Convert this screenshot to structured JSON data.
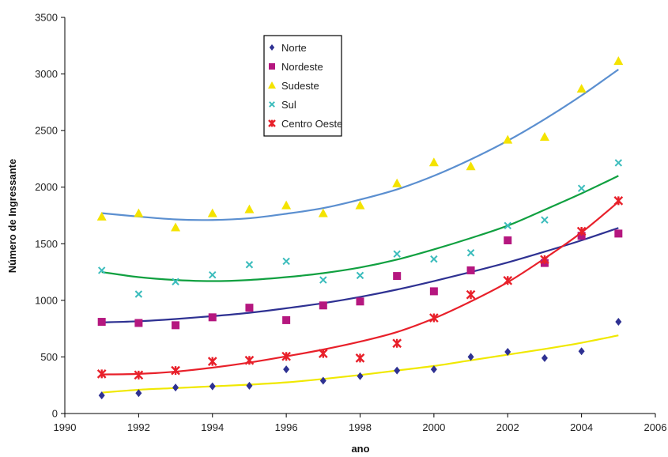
{
  "chart_data": {
    "type": "scatter",
    "title": "",
    "xlabel": "ano",
    "ylabel": "Número de Ingressante",
    "xlim": [
      1990,
      2006
    ],
    "ylim": [
      0,
      3500
    ],
    "xticks": [
      1990,
      1992,
      1994,
      1996,
      1998,
      2000,
      2002,
      2004,
      2006
    ],
    "yticks": [
      0,
      500,
      1000,
      1500,
      2000,
      2500,
      3000,
      3500
    ],
    "grid": false,
    "legend_position": "top-center",
    "x": [
      1991,
      1992,
      1993,
      1994,
      1995,
      1996,
      1997,
      1998,
      1999,
      2000,
      2001,
      2002,
      2003,
      2004,
      2005
    ],
    "series": [
      {
        "name": "Norte",
        "marker": "diamond",
        "color": "#2e3192",
        "trend_color": "#f0e800",
        "values": [
          160,
          180,
          230,
          240,
          245,
          390,
          290,
          330,
          380,
          390,
          500,
          545,
          490,
          550,
          810
        ],
        "trend": [
          185,
          210,
          225,
          240,
          255,
          275,
          305,
          340,
          380,
          420,
          470,
          520,
          570,
          625,
          690
        ]
      },
      {
        "name": "Nordeste",
        "marker": "square",
        "color": "#b5177f",
        "trend_color": "#2e3192",
        "values": [
          810,
          800,
          780,
          850,
          935,
          825,
          955,
          990,
          1215,
          1080,
          1265,
          1530,
          1330,
          1570,
          1590
        ],
        "trend": [
          805,
          815,
          835,
          860,
          890,
          930,
          975,
          1030,
          1095,
          1170,
          1250,
          1335,
          1430,
          1530,
          1640
        ]
      },
      {
        "name": "Sudeste",
        "marker": "triangle",
        "color": "#f4e300",
        "trend_color": "#5b8fd0",
        "values": [
          1740,
          1770,
          1645,
          1770,
          1805,
          1840,
          1770,
          1840,
          2035,
          2220,
          2185,
          2420,
          2445,
          2870,
          3115
        ],
        "trend": [
          1770,
          1740,
          1715,
          1710,
          1725,
          1765,
          1815,
          1890,
          1980,
          2100,
          2245,
          2410,
          2600,
          2810,
          3040
        ]
      },
      {
        "name": "Sul",
        "marker": "x",
        "color": "#3bbcbc",
        "trend_color": "#10a040",
        "values": [
          1265,
          1055,
          1165,
          1225,
          1315,
          1345,
          1180,
          1220,
          1410,
          1365,
          1420,
          1660,
          1710,
          1990,
          2215
        ],
        "trend": [
          1250,
          1205,
          1180,
          1170,
          1180,
          1205,
          1240,
          1290,
          1360,
          1450,
          1550,
          1660,
          1800,
          1945,
          2100
        ]
      },
      {
        "name": "Centro Oeste",
        "marker": "asterisk",
        "color": "#e8202a",
        "trend_color": "#e8202a",
        "values": [
          350,
          340,
          380,
          460,
          470,
          505,
          530,
          490,
          620,
          845,
          1050,
          1175,
          1360,
          1610,
          1880
        ],
        "trend": [
          345,
          350,
          370,
          405,
          450,
          505,
          565,
          635,
          720,
          840,
          990,
          1160,
          1370,
          1600,
          1870
        ]
      }
    ]
  }
}
